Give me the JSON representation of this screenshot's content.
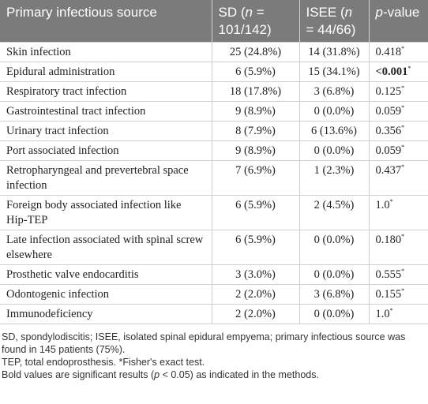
{
  "table": {
    "header": [
      [
        "Primary infectious source"
      ],
      [
        "SD (",
        "n",
        " = 101/142)"
      ],
      [
        "ISEE (",
        "n",
        " = 44/66)"
      ],
      [
        "p",
        "-value"
      ]
    ],
    "rows": [
      {
        "source": "Skin infection",
        "sd": "25 (24.8%)",
        "isee": "14 (31.8%)",
        "p": "0.418",
        "note": "*"
      },
      {
        "source": "Epidural administration",
        "sd": "6 (5.9%)",
        "isee": "15 (34.1%)",
        "p": "<0.001",
        "note": "*",
        "bold": true
      },
      {
        "source": "Respiratory tract infection",
        "sd": "18 (17.8%)",
        "isee": "3 (6.8%)",
        "p": "0.125",
        "note": "*"
      },
      {
        "source": "Gastrointestinal tract infection",
        "sd": "9 (8.9%)",
        "isee": "0 (0.0%)",
        "p": "0.059",
        "note": "*"
      },
      {
        "source": "Urinary tract infection",
        "sd": "8 (7.9%)",
        "isee": "6 (13.6%)",
        "p": "0.356",
        "note": "*"
      },
      {
        "source": "Port associated infection",
        "sd": "9 (8.9%)",
        "isee": "0 (0.0%)",
        "p": "0.059",
        "note": "*"
      },
      {
        "source": "Retropharyngeal and prevertebral space infection",
        "sd": "7 (6.9%)",
        "isee": "1 (2.3%)",
        "p": "0.437",
        "note": "*"
      },
      {
        "source": "Foreign body associated infection like Hip-TEP",
        "sd": "6 (5.9%)",
        "isee": "2 (4.5%)",
        "p": "1.0",
        "note": "*"
      },
      {
        "source": "Late infection associated with spinal screw elsewhere",
        "sd": "6 (5.9%)",
        "isee": "0 (0.0%)",
        "p": "0.180",
        "note": "*"
      },
      {
        "source": "Prosthetic valve endocarditis",
        "sd": "3 (3.0%)",
        "isee": "0 (0.0%)",
        "p": "0.555",
        "note": "*"
      },
      {
        "source": "Odontogenic infection",
        "sd": "2 (2.0%)",
        "isee": "3 (6.8%)",
        "p": "0.155",
        "note": "*"
      },
      {
        "source": "Immunodeficiency",
        "sd": "2 (2.0%)",
        "isee": "0 (0.0%)",
        "p": "1.0",
        "note": "*"
      }
    ]
  },
  "footnotes": [
    [
      "SD, spondylodiscitis; ISEE, isolated spinal epidural empyema; primary infectious source was found in 145 patients (75%)."
    ],
    [
      "TEP, total endoprosthesis. *Fisher's exact test."
    ],
    [
      "Bold values are significant results (",
      "p",
      " < 0.05) as indicated in the methods."
    ]
  ]
}
